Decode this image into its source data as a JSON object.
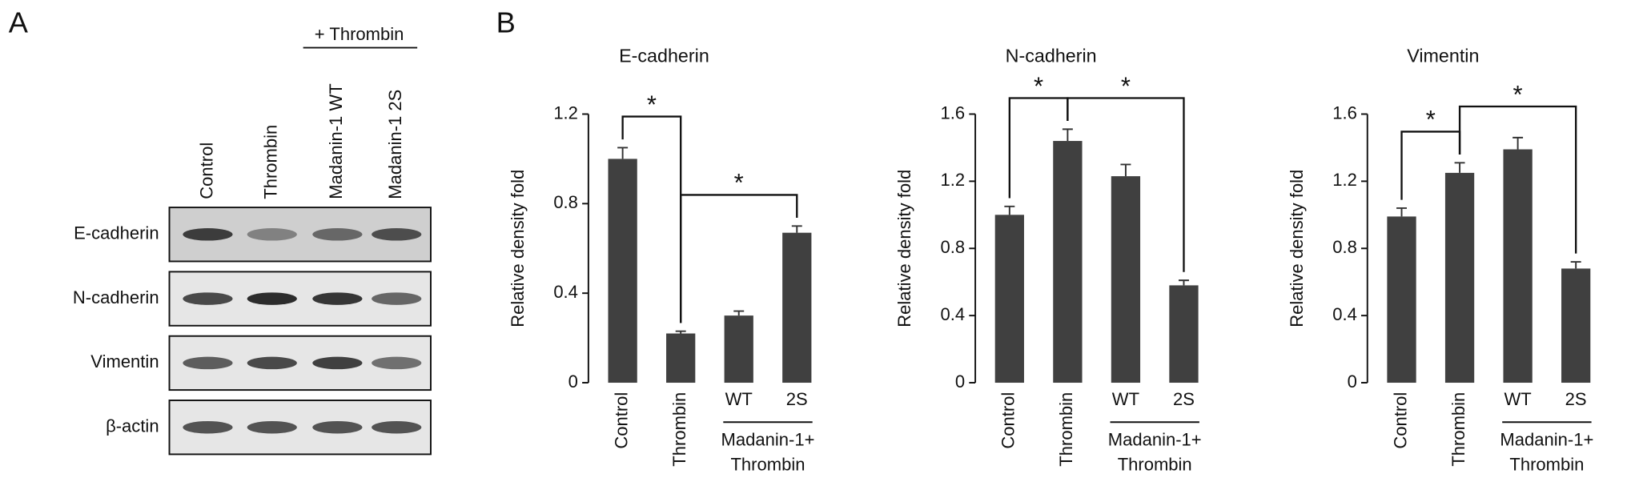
{
  "panel_labels": [
    "A",
    "B"
  ],
  "blot": {
    "treatment": "+ Thrombin",
    "lanes": [
      "Control",
      "Thrombin",
      "Madanin-1 WT",
      "Madanin-1 2S"
    ],
    "rows": [
      "E-cadherin",
      "N-cadherin",
      "Vimentin",
      "β-actin"
    ]
  },
  "chart_data": [
    {
      "type": "bar",
      "title": "E-cadherin",
      "y_label": "Relative density fold",
      "categories": [
        "Control",
        "Thrombin",
        "WT",
        "2S"
      ],
      "group": {
        "members": [
          "WT",
          "2S"
        ],
        "label": [
          "Madanin-1+",
          "Thrombin"
        ]
      },
      "values": [
        1.0,
        0.22,
        0.3,
        0.67
      ],
      "errors": [
        0.05,
        0.01,
        0.02,
        0.03
      ],
      "color": "#404040",
      "ylim": [
        0,
        1.2
      ],
      "yticks": [
        0,
        0.4,
        0.8,
        1.2
      ],
      "annotations": [
        {
          "text": "*",
          "between": [
            "Control",
            "Thrombin"
          ]
        },
        {
          "text": "*",
          "between": [
            "Thrombin",
            "2S"
          ]
        }
      ]
    },
    {
      "type": "bar",
      "title": "N-cadherin",
      "y_label": "Relative density fold",
      "categories": [
        "Control",
        "Thrombin",
        "WT",
        "2S"
      ],
      "group": {
        "members": [
          "WT",
          "2S"
        ],
        "label": [
          "Madanin-1+",
          "Thrombin"
        ]
      },
      "values": [
        1.0,
        1.44,
        1.23,
        0.58
      ],
      "errors": [
        0.05,
        0.07,
        0.07,
        0.03
      ],
      "color": "#404040",
      "ylim": [
        0,
        1.6
      ],
      "yticks": [
        0,
        0.4,
        0.8,
        1.2,
        1.6
      ],
      "annotations": [
        {
          "text": "*",
          "between": [
            "Control",
            "Thrombin"
          ]
        },
        {
          "text": "*",
          "between": [
            "Thrombin",
            "2S"
          ]
        }
      ]
    },
    {
      "type": "bar",
      "title": "Vimentin",
      "y_label": "Relative density fold",
      "categories": [
        "Control",
        "Thrombin",
        "WT",
        "2S"
      ],
      "group": {
        "members": [
          "WT",
          "2S"
        ],
        "label": [
          "Madanin-1+",
          "Thrombin"
        ]
      },
      "values": [
        0.99,
        1.25,
        1.39,
        0.68
      ],
      "errors": [
        0.05,
        0.06,
        0.07,
        0.04
      ],
      "color": "#404040",
      "ylim": [
        0,
        1.6
      ],
      "yticks": [
        0,
        0.4,
        0.8,
        1.2,
        1.6
      ],
      "annotations": [
        {
          "text": "*",
          "between": [
            "Control",
            "Thrombin"
          ]
        },
        {
          "text": "*",
          "between": [
            "Thrombin",
            "2S"
          ]
        }
      ]
    }
  ]
}
